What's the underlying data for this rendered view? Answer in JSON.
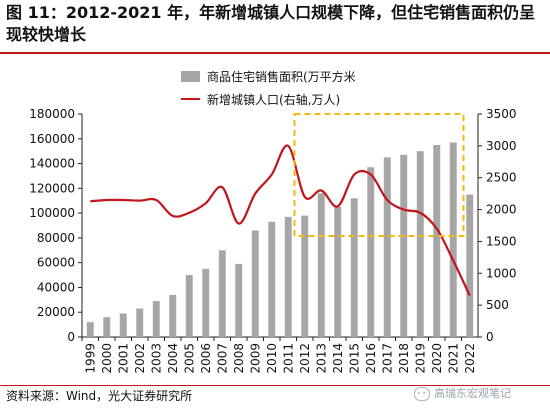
{
  "header": {
    "title": "图 11：2012-2021 年，年新增城镇人口规模下降，但住宅销售面积仍呈现较快增长"
  },
  "footer": {
    "source": "资料来源：Wind，光大证券研究所",
    "watermark": "高瑞东宏观笔记"
  },
  "colors": {
    "bar": "#a6a6a6",
    "line": "#c0161c",
    "highlight_box": "#f2b90f",
    "rule": "#c0161c"
  },
  "chart_data": {
    "type": "bar+line",
    "categories": [
      "1999",
      "2000",
      "2001",
      "2002",
      "2003",
      "2004",
      "2005",
      "2006",
      "2007",
      "2008",
      "2009",
      "2010",
      "2011",
      "2012",
      "2013",
      "2014",
      "2015",
      "2016",
      "2017",
      "2018",
      "2019",
      "2020",
      "2021",
      "2022"
    ],
    "series": [
      {
        "name": "商品住宅销售面积(万平方米",
        "type": "bar",
        "axis": "left",
        "values": [
          12000,
          16000,
          19000,
          23000,
          29000,
          34000,
          50000,
          55000,
          70000,
          59000,
          86000,
          93000,
          97000,
          98000,
          116000,
          105000,
          112000,
          137000,
          145000,
          147000,
          150000,
          155000,
          157000,
          115000
        ]
      },
      {
        "name": "新增城镇人口(右轴,万人)",
        "type": "line",
        "axis": "right",
        "values": [
          2130,
          2150,
          2150,
          2140,
          2150,
          1900,
          1950,
          2100,
          2350,
          1780,
          2250,
          2550,
          3000,
          2200,
          2300,
          2050,
          2550,
          2550,
          2150,
          2000,
          1950,
          1700,
          1200,
          650
        ]
      }
    ],
    "y_left": {
      "ylim": [
        0,
        180000
      ],
      "ticks": [
        "0",
        "20000",
        "40000",
        "60000",
        "80000",
        "100000",
        "120000",
        "140000",
        "160000",
        "180000"
      ]
    },
    "y_right": {
      "ylim": [
        0,
        3500
      ],
      "ticks": [
        "0",
        "500",
        "1000",
        "1500",
        "2000",
        "2500",
        "3000",
        "3500"
      ]
    },
    "highlight": {
      "from": "2012",
      "to": "2021",
      "style": "dashed box"
    },
    "legend_position": "top-center",
    "grid": false
  }
}
